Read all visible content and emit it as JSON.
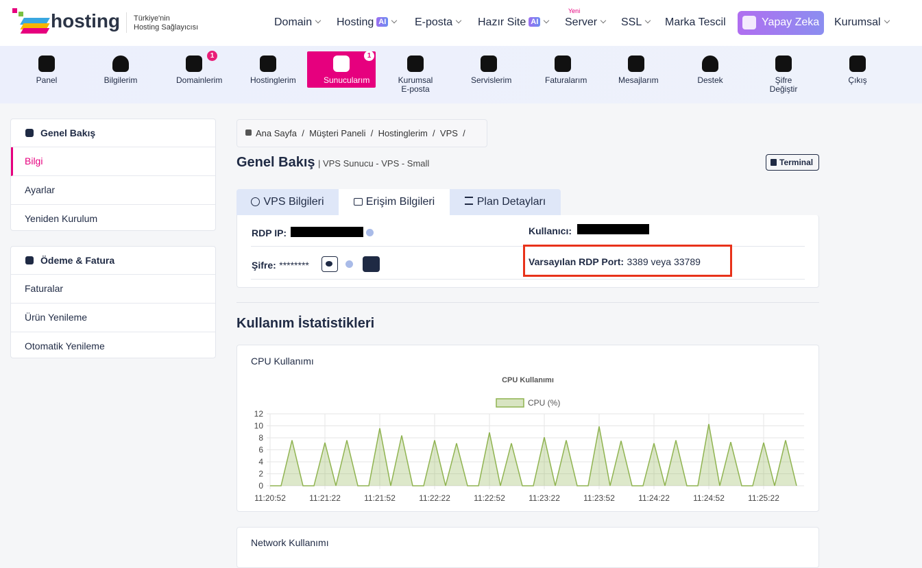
{
  "header": {
    "logo": "hosting",
    "tagline": [
      "Türkiye'nin",
      "Hosting Sağlayıcısı"
    ],
    "menu": [
      {
        "label": "Domain"
      },
      {
        "label": "Hosting",
        "badge": "AI"
      },
      {
        "label": "E-posta"
      },
      {
        "label": "Hazır Site",
        "badge": "AI"
      },
      {
        "label": "Server",
        "tag": "Yeni"
      },
      {
        "label": "SSL"
      },
      {
        "label": "Marka Tescil"
      },
      {
        "label": "Yapay Zeka"
      },
      {
        "label": "Kurumsal"
      }
    ]
  },
  "nav": [
    {
      "label": "Panel"
    },
    {
      "label": "Bilgilerim"
    },
    {
      "label": "Domainlerim",
      "badge": 1
    },
    {
      "label": "Hostinglerim"
    },
    {
      "label": "Sunucularım",
      "badge": 1
    },
    {
      "label": "Kurumsal E-posta"
    },
    {
      "label": "Servislerim"
    },
    {
      "label": "Faturalarım"
    },
    {
      "label": "Mesajlarım"
    },
    {
      "label": "Destek"
    },
    {
      "label": "Şifre Değiştir"
    },
    {
      "label": "Çıkış"
    }
  ],
  "sidebar": [
    {
      "title": "Genel Bakış",
      "items": [
        "Bilgi",
        "Ayarlar",
        "Yeniden Kurulum"
      ]
    },
    {
      "title": "Ödeme & Fatura",
      "items": [
        "Faturalar",
        "Ürün Yenileme",
        "Otomatik Yenileme"
      ]
    }
  ],
  "breadcrumb": {
    "items": [
      "Ana Sayfa",
      "Müşteri Paneli",
      "Hostinglerim",
      "VPS"
    ],
    "separator": "/"
  },
  "page": {
    "title": "Genel Bakış",
    "subtitle": "| VPS Sunucu - VPS - Small",
    "terminal": "Terminal"
  },
  "tabs": [
    "VPS Bilgileri",
    "Erişim Bilgileri",
    "Plan Detayları"
  ],
  "info": {
    "rdp_ip_label": "RDP IP:",
    "user_label": "Kullanıcı:",
    "password_label": "Şifre:",
    "password_value": "********",
    "port_label": "Varsayılan RDP Port:",
    "port_value": "3389 veya 33789"
  },
  "stats": {
    "title": "Kullanım İstatistikleri",
    "cpu_card_title": "CPU Kullanımı",
    "network_card_title": "Network Kullanımı"
  },
  "chart_data": {
    "type": "line",
    "title": "CPU Kullanımı",
    "categories": [
      "11:20:52",
      null,
      null,
      null,
      null,
      "11:21:22",
      null,
      null,
      null,
      null,
      "11:21:52",
      null,
      null,
      null,
      null,
      "11:22:22",
      null,
      null,
      null,
      null,
      "11:22:52",
      null,
      null,
      null,
      null,
      "11:23:22",
      null,
      null,
      null,
      null,
      "11:23:52",
      null,
      null,
      null,
      null,
      "11:24:22",
      null,
      null,
      null,
      null,
      "11:24:52",
      null,
      null,
      null,
      null,
      "11:25:22",
      null,
      null,
      null
    ],
    "series": [
      {
        "name": "CPU (%)",
        "color": "#8fb350",
        "values": [
          0,
          0,
          7.6,
          0,
          0,
          7.2,
          0,
          7.6,
          0,
          0,
          9.6,
          0,
          8.4,
          0,
          0,
          7.6,
          0,
          7.1,
          0,
          0,
          8.9,
          0,
          7.1,
          0,
          0,
          8.1,
          0,
          7.6,
          0,
          0,
          9.9,
          0,
          7.5,
          0,
          0,
          7.1,
          0,
          7.6,
          0,
          0,
          10.3,
          0,
          7.3,
          0,
          0,
          7.2,
          0,
          7.6,
          0
        ]
      }
    ],
    "ylim": [
      0,
      12
    ],
    "yticks": [
      0,
      2,
      4,
      6,
      8,
      10,
      12
    ],
    "grid": true
  }
}
